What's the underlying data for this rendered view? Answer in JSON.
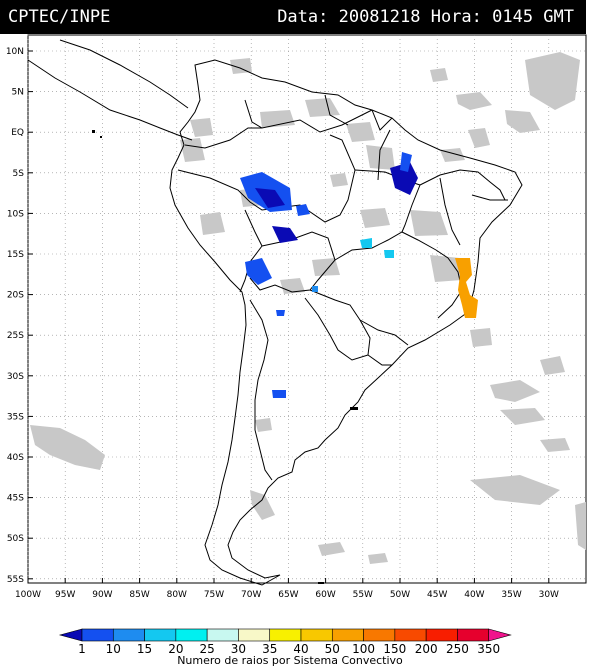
{
  "header": {
    "source": "CPTEC/INPE",
    "datetime": "Data: 20081218 Hora: 0145 GMT"
  },
  "axes": {
    "lat_labels": [
      "10N",
      "5N",
      "EQ",
      "5S",
      "10S",
      "15S",
      "20S",
      "25S",
      "30S",
      "35S",
      "40S",
      "45S",
      "50S",
      "55S"
    ],
    "lon_labels": [
      "100W",
      "95W",
      "90W",
      "85W",
      "80W",
      "75W",
      "70W",
      "65W",
      "60W",
      "55W",
      "50W",
      "45W",
      "40W",
      "35W",
      "30W"
    ]
  },
  "colorbar": {
    "ticks": [
      "1",
      "10",
      "15",
      "20",
      "25",
      "30",
      "35",
      "40",
      "50",
      "100",
      "150",
      "200",
      "250",
      "350"
    ],
    "colors": [
      "#0a0ab4",
      "#1450f0",
      "#1e8cf0",
      "#14c8f0",
      "#00f0f0",
      "#c8f8f0",
      "#f8f8c8",
      "#f8f000",
      "#f8c800",
      "#f8a000",
      "#f87800",
      "#f84a00",
      "#f81e00",
      "#e6002d",
      "#f0148c"
    ],
    "label": "Numero de raios por Sistema Convectivo"
  },
  "legend_colors": {
    "cloud": "#c8c8c8",
    "border": "#000000"
  }
}
